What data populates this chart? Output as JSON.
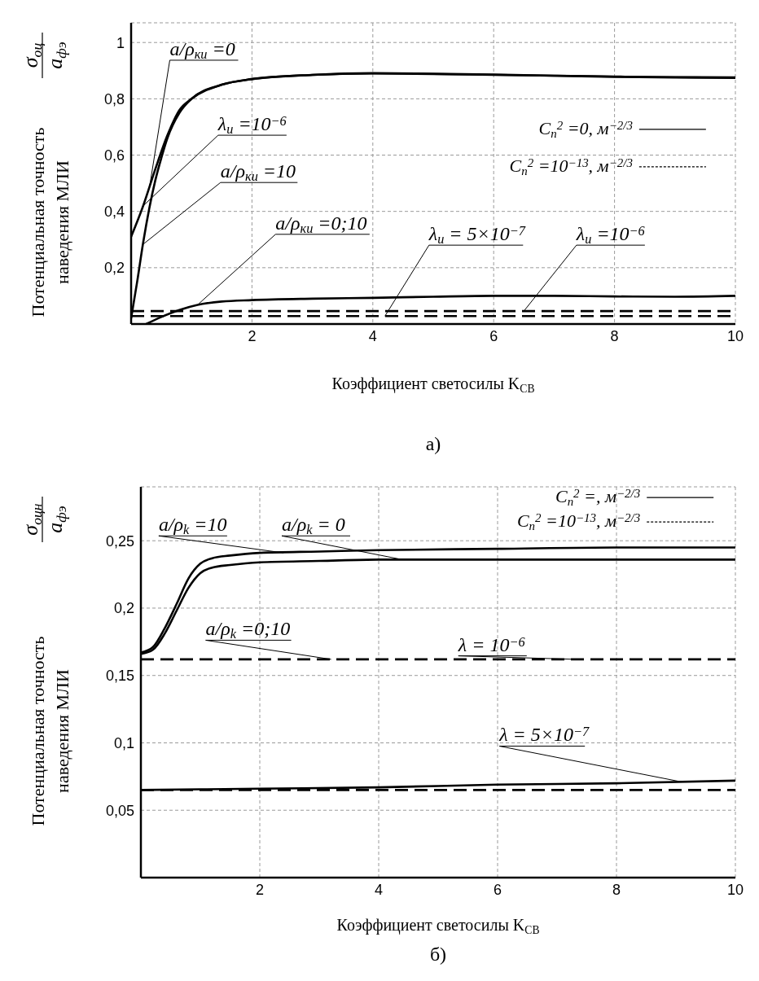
{
  "chart_data": [
    {
      "type": "line",
      "xlabel": "Коэффициент светосилы K$_{СВ}$",
      "ylabel": "Потенциальная точность наведения МЛИ",
      "xlim": [
        0,
        10
      ],
      "ylim": [
        0,
        1.07
      ],
      "xticks": [
        2,
        4,
        6,
        8,
        10
      ],
      "yticks": [
        {
          "value": 0.2,
          "label": "0,2"
        },
        {
          "value": 0.4,
          "label": "0,4"
        },
        {
          "value": 0.6,
          "label": "0,6"
        },
        {
          "value": 0.8,
          "label": "0,8"
        },
        {
          "value": 1,
          "label": "1"
        }
      ],
      "grid": true,
      "legend": "right",
      "marker": "none",
      "series": [
        {
          "name": "C$_{n}$$^{2}$ =0, м$^{−2/3}$",
          "color": "#000000",
          "line_style": "solid",
          "x": [
            0,
            0.2,
            0.4,
            0.6,
            0.8,
            1,
            1.5,
            2,
            3,
            4,
            5,
            6,
            7,
            8,
            9,
            10
          ],
          "values": [
            0.31,
            0.42,
            0.55,
            0.67,
            0.76,
            0.8,
            0.85,
            0.87,
            0.885,
            0.89,
            0.888,
            0.885,
            0.882,
            0.878,
            0.876,
            0.874
          ]
        },
        {
          "color": "#000000",
          "line_style": "solid",
          "x": [
            0,
            0.1,
            0.2,
            0.3,
            0.4,
            0.5,
            0.6,
            0.8,
            1,
            1.5,
            2,
            3,
            4,
            5,
            6,
            7,
            8,
            9,
            10
          ],
          "values": [
            0.02,
            0.15,
            0.29,
            0.41,
            0.51,
            0.59,
            0.66,
            0.75,
            0.8,
            0.85,
            0.87,
            0.885,
            0.891,
            0.889,
            0.886,
            0.882,
            0.879,
            0.877,
            0.876
          ]
        },
        {
          "color": "#000000",
          "line_style": "solid",
          "x": [
            0.25,
            0.5,
            0.8,
            1.1,
            1.5,
            2,
            3,
            4,
            5,
            6,
            7,
            8,
            9,
            10
          ],
          "values": [
            0,
            0.025,
            0.05,
            0.068,
            0.08,
            0.085,
            0.09,
            0.093,
            0.097,
            0.1,
            0.1,
            0.098,
            0.097,
            0.1
          ]
        },
        {
          "name": "C$_{n}$$^{2}$ =10$^{−13}$, м$^{−2/3}$",
          "color": "#000000",
          "line_style": "dashed",
          "x": [
            0,
            10
          ],
          "values": [
            0.046,
            0.046
          ]
        },
        {
          "color": "#000000",
          "line_style": "dashed",
          "x": [
            0,
            10
          ],
          "values": [
            0.028,
            0.028
          ]
        }
      ],
      "annotations": [
        "σ$_{оц}$",
        "a$_{фэ}$",
        "а)",
        {
          "text": "a/ρ$_{ки}$ =0",
          "x": 0.3,
          "y": 0.48
        },
        {
          "text": "λ$_{и}$ =10$^{−6}$",
          "x": 0.2,
          "y": 0.42
        },
        {
          "text": "a/ρ$_{ки}$ =10",
          "x": 0.18,
          "y": 0.28
        },
        {
          "text": "a/ρ$_{ки}$ =0;10",
          "x": 1.1,
          "y": 0.068
        },
        {
          "text": "λ$_{и}$ = 5×10$^{−7}$",
          "x": 4.2,
          "y": 0.028
        },
        {
          "text": "λ$_{и}$ =10$^{−6}$",
          "x": 6.5,
          "y": 0.046
        }
      ]
    },
    {
      "type": "line",
      "xlabel": "Коэффициент светосилы K$_{СВ}$",
      "ylabel": "Потенциальная точность наведения МЛИ",
      "xlim": [
        0,
        10
      ],
      "ylim": [
        0,
        0.29
      ],
      "xticks": [
        2,
        4,
        6,
        8,
        10
      ],
      "yticks": [
        {
          "value": 0.05,
          "label": "0,05"
        },
        {
          "value": 0.1,
          "label": "0,1"
        },
        {
          "value": 0.15,
          "label": "0,15"
        },
        {
          "value": 0.2,
          "label": "0,2"
        },
        {
          "value": 0.25,
          "label": "0,25"
        }
      ],
      "grid": true,
      "legend": "top right",
      "marker": "none",
      "series": [
        {
          "name": "C$_{n}$$^{2}$ =, м$^{−2/3}$",
          "color": "#000000",
          "line_style": "solid",
          "x": [
            0,
            0.2,
            0.4,
            0.6,
            0.8,
            1,
            1.2,
            1.5,
            2,
            3,
            4,
            6,
            8,
            10
          ],
          "values": [
            0.167,
            0.171,
            0.185,
            0.203,
            0.222,
            0.233,
            0.237,
            0.239,
            0.241,
            0.242,
            0.243,
            0.244,
            0.245,
            0.245
          ]
        },
        {
          "color": "#000000",
          "line_style": "solid",
          "x": [
            0,
            0.2,
            0.4,
            0.6,
            0.8,
            1,
            1.2,
            1.5,
            2,
            3,
            4,
            6,
            8,
            10
          ],
          "values": [
            0.166,
            0.169,
            0.181,
            0.198,
            0.215,
            0.226,
            0.23,
            0.232,
            0.234,
            0.235,
            0.236,
            0.236,
            0.236,
            0.236
          ]
        },
        {
          "name": "C$_{n}$$^{2}$ =10$^{−13}$, м$^{−2/3}$",
          "color": "#000000",
          "line_style": "dashed",
          "x": [
            0,
            10
          ],
          "values": [
            0.162,
            0.162
          ]
        },
        {
          "color": "#000000",
          "line_style": "solid",
          "x": [
            0,
            2,
            4,
            6,
            8,
            10
          ],
          "values": [
            0.065,
            0.066,
            0.067,
            0.069,
            0.07,
            0.072
          ]
        },
        {
          "color": "#000000",
          "line_style": "dashed",
          "x": [
            0,
            10
          ],
          "values": [
            0.065,
            0.065
          ]
        }
      ],
      "annotations": [
        "σ$_{оцн}$",
        "a$_{фэ}$",
        "б)",
        {
          "text": "a/ρ$_{k}$ =10",
          "x": 2.4,
          "y": 0.241
        },
        {
          "text": "a/ρ$_{k}$ = 0",
          "x": 4.4,
          "y": 0.236
        },
        {
          "text": "a/ρ$_{k}$ =0;10",
          "x": 3.2,
          "y": 0.162
        },
        {
          "text": "λ = 10$^{−6}$",
          "x": 7.3,
          "y": 0.162
        },
        {
          "text": "λ = 5×10$^{−7}$",
          "x": 9.1,
          "y": 0.071
        }
      ]
    }
  ]
}
